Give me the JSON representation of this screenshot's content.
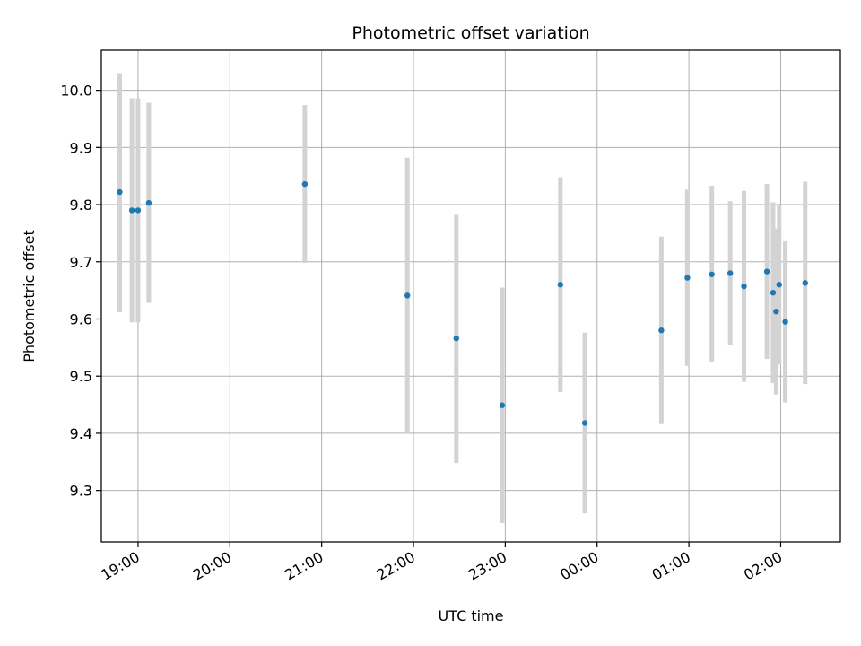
{
  "chart_data": {
    "type": "scatter",
    "title": "Photometric offset variation",
    "xlabel": "UTC time",
    "ylabel": "Photometric offset",
    "grid": true,
    "error_bars": true,
    "colors": {
      "points": "#1f77b4",
      "error_bars": "#d3d3d3",
      "grid": "#b0b0b0"
    },
    "x_ticks": [
      "19:00",
      "20:00",
      "21:00",
      "22:00",
      "23:00",
      "00:00",
      "01:00",
      "02:00"
    ],
    "y_ticks": [
      "9.3",
      "9.4",
      "9.5",
      "9.6",
      "9.7",
      "9.8",
      "9.9",
      "10.0"
    ],
    "xlim": [
      "18:36",
      "02:39"
    ],
    "ylim": [
      9.21,
      10.07
    ],
    "points": [
      {
        "x": "18:48",
        "y": 9.822,
        "err_low": 9.612,
        "err_high": 10.03
      },
      {
        "x": "18:56",
        "y": 9.79,
        "err_low": 9.594,
        "err_high": 9.986
      },
      {
        "x": "19:00",
        "y": 9.79,
        "err_low": 9.594,
        "err_high": 9.986
      },
      {
        "x": "19:07",
        "y": 9.803,
        "err_low": 9.628,
        "err_high": 9.978
      },
      {
        "x": "20:49",
        "y": 9.836,
        "err_low": 9.698,
        "err_high": 9.974
      },
      {
        "x": "21:56",
        "y": 9.641,
        "err_low": 9.4,
        "err_high": 9.882
      },
      {
        "x": "22:28",
        "y": 9.566,
        "err_low": 9.348,
        "err_high": 9.782
      },
      {
        "x": "22:58",
        "y": 9.449,
        "err_low": 9.243,
        "err_high": 9.655
      },
      {
        "x": "23:36",
        "y": 9.66,
        "err_low": 9.472,
        "err_high": 9.848
      },
      {
        "x": "23:52",
        "y": 9.418,
        "err_low": 9.26,
        "err_high": 9.576
      },
      {
        "x": "00:42",
        "y": 9.58,
        "err_low": 9.416,
        "err_high": 9.744
      },
      {
        "x": "00:59",
        "y": 9.672,
        "err_low": 9.518,
        "err_high": 9.826
      },
      {
        "x": "01:15",
        "y": 9.678,
        "err_low": 9.525,
        "err_high": 9.833
      },
      {
        "x": "01:27",
        "y": 9.68,
        "err_low": 9.554,
        "err_high": 9.806
      },
      {
        "x": "01:36",
        "y": 9.657,
        "err_low": 9.49,
        "err_high": 9.824
      },
      {
        "x": "01:51",
        "y": 9.683,
        "err_low": 9.53,
        "err_high": 9.836
      },
      {
        "x": "01:55",
        "y": 9.646,
        "err_low": 9.488,
        "err_high": 9.804
      },
      {
        "x": "01:57",
        "y": 9.613,
        "err_low": 9.468,
        "err_high": 9.758
      },
      {
        "x": "01:59",
        "y": 9.66,
        "err_low": 9.52,
        "err_high": 9.8
      },
      {
        "x": "02:03",
        "y": 9.595,
        "err_low": 9.454,
        "err_high": 9.736
      },
      {
        "x": "02:16",
        "y": 9.663,
        "err_low": 9.486,
        "err_high": 9.84
      }
    ]
  }
}
